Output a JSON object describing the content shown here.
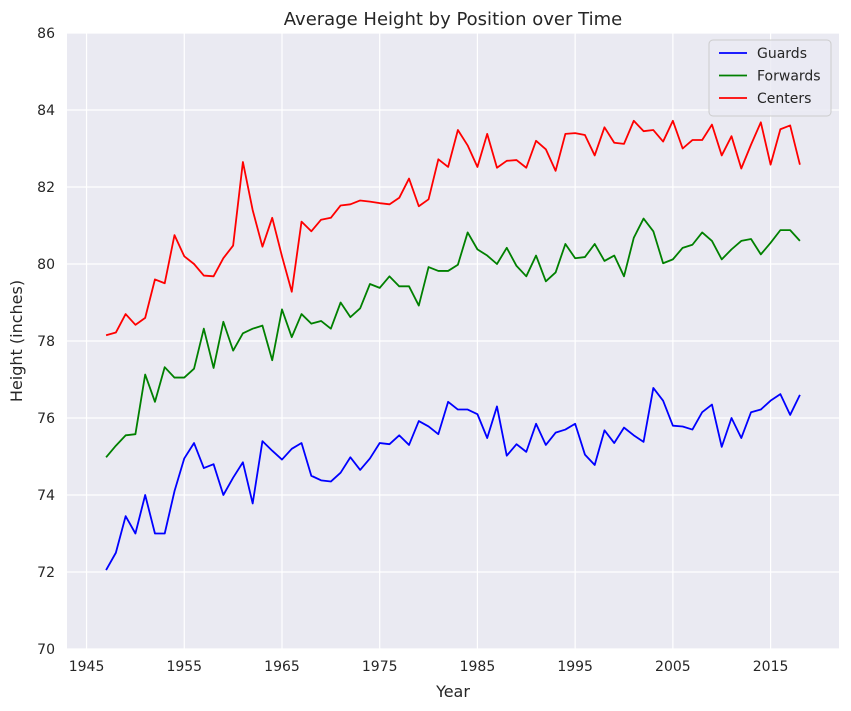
{
  "chart_data": {
    "type": "line",
    "title": "Average Height by Position over Time",
    "xlabel": "Year",
    "ylabel": "Height (inches)",
    "xlim": [
      1943,
      2022
    ],
    "ylim": [
      70,
      86
    ],
    "xticks": [
      1945,
      1955,
      1965,
      1975,
      1985,
      1995,
      2005,
      2015
    ],
    "yticks": [
      70,
      72,
      74,
      76,
      78,
      80,
      82,
      84,
      86
    ],
    "grid": true,
    "legend_position": "top-right",
    "x": [
      1947,
      1948,
      1949,
      1950,
      1951,
      1952,
      1953,
      1954,
      1955,
      1956,
      1957,
      1958,
      1959,
      1960,
      1961,
      1962,
      1963,
      1964,
      1965,
      1966,
      1967,
      1968,
      1969,
      1970,
      1971,
      1972,
      1973,
      1974,
      1975,
      1976,
      1977,
      1978,
      1979,
      1980,
      1981,
      1982,
      1983,
      1984,
      1985,
      1986,
      1987,
      1988,
      1989,
      1990,
      1991,
      1992,
      1993,
      1994,
      1995,
      1996,
      1997,
      1998,
      1999,
      2000,
      2001,
      2002,
      2003,
      2004,
      2005,
      2006,
      2007,
      2008,
      2009,
      2010,
      2011,
      2012,
      2013,
      2014,
      2015,
      2016,
      2017,
      2018
    ],
    "series": [
      {
        "name": "Guards",
        "color": "#0000ff",
        "values": [
          72.05,
          72.5,
          73.45,
          73.0,
          74.0,
          73.0,
          73.0,
          74.1,
          74.95,
          75.35,
          74.7,
          74.8,
          74.0,
          74.45,
          74.85,
          73.78,
          75.4,
          75.15,
          74.92,
          75.2,
          75.35,
          74.5,
          74.38,
          74.35,
          74.58,
          74.98,
          74.65,
          74.95,
          75.35,
          75.32,
          75.55,
          75.3,
          75.92,
          75.78,
          75.58,
          76.42,
          76.22,
          76.22,
          76.1,
          75.48,
          76.3,
          75.02,
          75.32,
          75.12,
          75.85,
          75.3,
          75.62,
          75.7,
          75.85,
          75.05,
          74.78,
          75.68,
          75.35,
          75.75,
          75.55,
          75.38,
          76.78,
          76.45,
          75.8,
          75.78,
          75.7,
          76.15,
          76.35,
          75.25,
          76.0,
          75.48,
          76.15,
          76.22,
          76.45,
          76.62,
          76.08,
          76.6
        ]
      },
      {
        "name": "Forwards",
        "color": "#008000",
        "values": [
          74.98,
          75.28,
          75.55,
          75.58,
          77.13,
          76.42,
          77.32,
          77.05,
          77.05,
          77.28,
          78.32,
          77.3,
          78.5,
          77.75,
          78.2,
          78.32,
          78.4,
          77.5,
          78.82,
          78.1,
          78.7,
          78.45,
          78.52,
          78.32,
          79.0,
          78.62,
          78.85,
          79.48,
          79.38,
          79.68,
          79.42,
          79.42,
          78.92,
          79.92,
          79.82,
          79.82,
          79.98,
          80.82,
          80.38,
          80.22,
          80.0,
          80.42,
          79.95,
          79.68,
          80.22,
          79.55,
          79.78,
          80.52,
          80.15,
          80.18,
          80.52,
          80.08,
          80.22,
          79.68,
          80.68,
          81.18,
          80.85,
          80.02,
          80.12,
          80.42,
          80.5,
          80.82,
          80.6,
          80.12,
          80.38,
          80.6,
          80.65,
          80.25,
          80.55,
          80.88,
          80.88,
          80.6
        ]
      },
      {
        "name": "Centers",
        "color": "#ff0000",
        "values": [
          78.15,
          78.22,
          78.7,
          78.42,
          78.6,
          79.6,
          79.5,
          80.75,
          80.2,
          80.0,
          79.7,
          79.68,
          80.15,
          80.48,
          82.65,
          81.4,
          80.45,
          81.2,
          80.2,
          79.28,
          81.1,
          80.85,
          81.15,
          81.2,
          81.52,
          81.55,
          81.65,
          81.62,
          81.58,
          81.55,
          81.72,
          82.22,
          81.5,
          81.68,
          82.72,
          82.52,
          83.48,
          83.08,
          82.52,
          83.38,
          82.5,
          82.68,
          82.7,
          82.5,
          83.2,
          82.98,
          82.42,
          83.38,
          83.4,
          83.35,
          82.82,
          83.55,
          83.15,
          83.12,
          83.72,
          83.45,
          83.48,
          83.18,
          83.72,
          83.0,
          83.22,
          83.22,
          83.62,
          82.82,
          83.32,
          82.48,
          83.1,
          83.68,
          82.58,
          83.5,
          83.6,
          82.58
        ]
      }
    ]
  }
}
